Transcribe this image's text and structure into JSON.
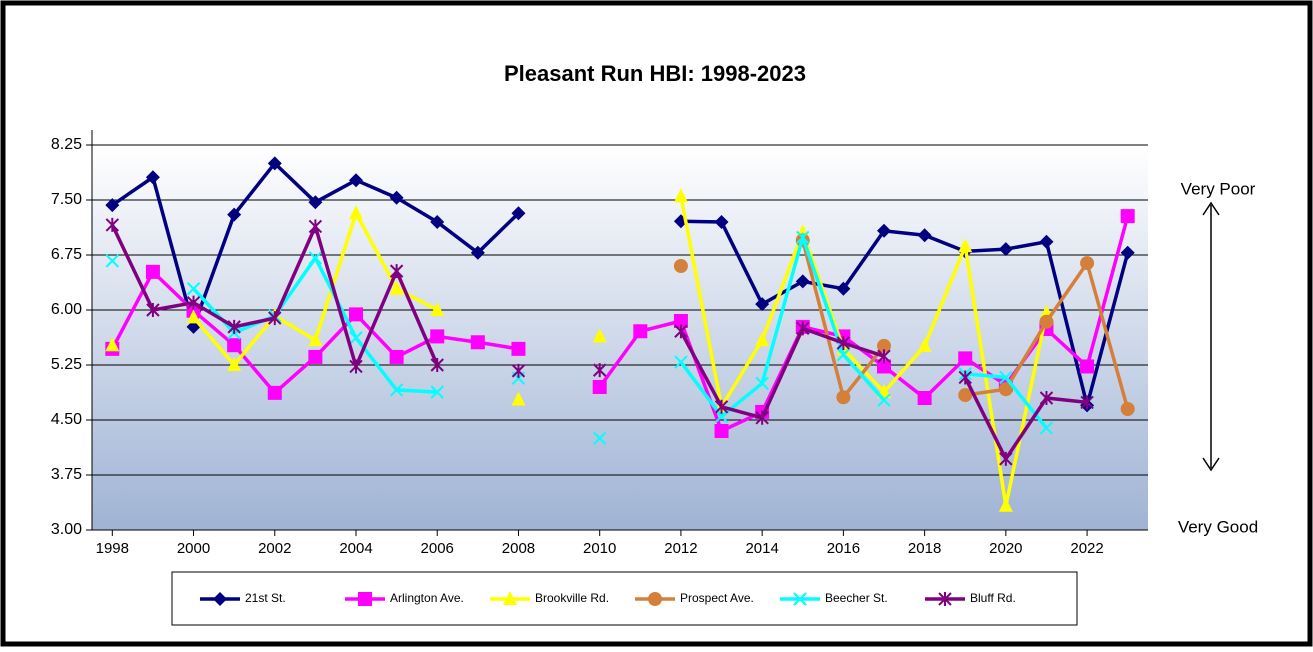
{
  "chart_data": {
    "type": "line",
    "title": "Pleasant Run HBI: 1998-2023",
    "x": [
      1998,
      1999,
      2000,
      2001,
      2002,
      2003,
      2004,
      2005,
      2006,
      2007,
      2008,
      2009,
      2010,
      2011,
      2012,
      2013,
      2014,
      2015,
      2016,
      2017,
      2018,
      2019,
      2020,
      2021,
      2022,
      2023
    ],
    "xlim": [
      1997.5,
      2023.5
    ],
    "xticks": [
      1998,
      2000,
      2002,
      2004,
      2006,
      2008,
      2010,
      2012,
      2014,
      2016,
      2018,
      2020,
      2022
    ],
    "ylim": [
      3,
      8.25
    ],
    "yticks": [
      {
        "value": 3,
        "label": "3.00"
      },
      3.75,
      {
        "value": 4.5,
        "label": "4.50"
      },
      5.25,
      {
        "value": 6,
        "label": "6.00"
      },
      6.75,
      {
        "value": 7.5,
        "label": "7.50"
      },
      8.25
    ],
    "grid": true,
    "legend": "bottom",
    "annotations": [
      "Very Poor",
      "Very Good"
    ],
    "series": [
      {
        "name": "21st St.",
        "color": "#000080",
        "marker": "diamond",
        "values": [
          7.43,
          7.81,
          5.77,
          7.3,
          8.0,
          7.47,
          7.77,
          7.53,
          7.2,
          6.78,
          7.32,
          null,
          null,
          null,
          7.21,
          7.2,
          6.08,
          6.39,
          6.29,
          7.08,
          7.02,
          6.8,
          6.83,
          6.93,
          4.7,
          6.78
        ]
      },
      {
        "name": "Arlington Ave.",
        "color": "#ff00ff",
        "marker": "square",
        "values": [
          5.47,
          6.52,
          5.99,
          5.52,
          4.87,
          5.36,
          5.94,
          5.36,
          5.64,
          5.56,
          5.47,
          null,
          4.95,
          5.71,
          5.85,
          4.35,
          4.61,
          5.77,
          5.64,
          5.23,
          4.8,
          5.34,
          4.98,
          5.74,
          5.23,
          7.28
        ]
      },
      {
        "name": "Brookville Rd.",
        "color": "#ffff00",
        "marker": "triangle",
        "values": [
          5.52,
          null,
          5.9,
          5.25,
          5.92,
          5.59,
          7.32,
          6.29,
          6.0,
          null,
          4.78,
          null,
          5.64,
          null,
          7.55,
          4.68,
          5.59,
          7.06,
          5.47,
          4.88,
          5.51,
          6.87,
          3.33,
          5.96,
          null,
          null
        ]
      },
      {
        "name": "Prospect Ave.",
        "color": "#d4803a",
        "marker": "circle",
        "values": [
          null,
          null,
          null,
          null,
          null,
          null,
          null,
          null,
          null,
          null,
          null,
          null,
          null,
          null,
          6.6,
          null,
          null,
          6.95,
          4.81,
          5.51,
          null,
          4.84,
          4.92,
          5.84,
          6.64,
          4.65
        ]
      },
      {
        "name": "Beecher St.",
        "color": "#00ffff",
        "marker": "x",
        "values": [
          6.67,
          null,
          6.29,
          5.69,
          5.92,
          6.71,
          5.62,
          4.91,
          4.88,
          null,
          5.07,
          null,
          4.25,
          null,
          5.29,
          4.55,
          5.0,
          6.99,
          5.39,
          4.77,
          null,
          5.13,
          5.08,
          4.39,
          null,
          null
        ]
      },
      {
        "name": "Bluff Rd.",
        "color": "#800080",
        "marker": "star",
        "values": [
          7.16,
          6.0,
          6.1,
          5.77,
          5.89,
          7.14,
          5.23,
          6.53,
          5.25,
          null,
          5.17,
          null,
          5.18,
          null,
          5.71,
          4.68,
          4.53,
          5.75,
          5.55,
          5.37,
          null,
          5.08,
          3.97,
          4.8,
          4.74,
          null
        ]
      }
    ]
  }
}
